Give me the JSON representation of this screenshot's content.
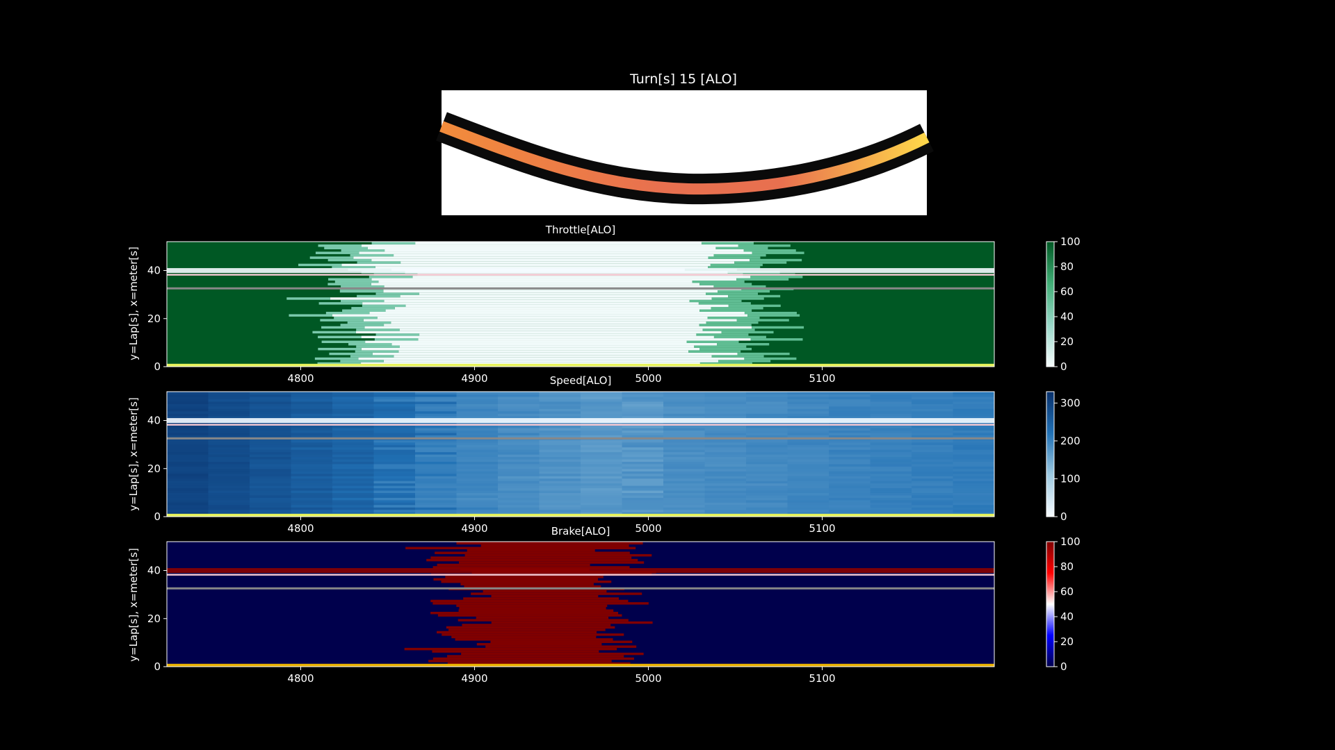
{
  "chart_data": [
    {
      "type": "track-map",
      "title": "Turn[s] 15 [ALO]",
      "colors": {
        "start": "#f28c3c",
        "mid": "#e8704f",
        "end": "#ffd84a",
        "border": "#0a0a0a"
      }
    },
    {
      "type": "heatmap",
      "title": "Throttle[ALO]",
      "ylabel": "y=Lap[s], x=meter[s]",
      "xlim": [
        4723,
        5199
      ],
      "ylim": [
        0,
        52
      ],
      "xticks": [
        4800,
        4900,
        5000,
        5100
      ],
      "yticks": [
        0,
        20,
        40
      ],
      "colorbar": {
        "ticks": [
          0,
          20,
          40,
          60,
          80,
          100
        ],
        "range": [
          0,
          100
        ],
        "colors": [
          "#f7fcfd",
          "#99d8c9",
          "#41ae76",
          "#005824"
        ]
      },
      "zone_start_x": 4850,
      "zone_end_x": 5040
    },
    {
      "type": "heatmap",
      "title": "Speed[ALO]",
      "ylabel": "y=Lap[s], x=meter[s]",
      "xlim": [
        4723,
        5199
      ],
      "ylim": [
        0,
        52
      ],
      "xticks": [
        4800,
        4900,
        5000,
        5100
      ],
      "yticks": [
        0,
        20,
        40
      ],
      "colorbar": {
        "ticks": [
          0,
          100,
          200,
          300
        ],
        "range": [
          0,
          330
        ],
        "colors": [
          "#f7fbff",
          "#9ecae1",
          "#2171b5",
          "#08306b"
        ]
      },
      "zone_start_x": 4870,
      "zone_end_x": 5000
    },
    {
      "type": "heatmap",
      "title": "Brake[ALO]",
      "ylabel": "y=Lap[s], x=meter[s]",
      "xlim": [
        4723,
        5199
      ],
      "ylim": [
        0,
        52
      ],
      "xticks": [
        4800,
        4900,
        5000,
        5100
      ],
      "yticks": [
        0,
        20,
        40
      ],
      "colorbar": {
        "ticks": [
          0,
          20,
          40,
          60,
          80,
          100
        ],
        "range": [
          0,
          100
        ],
        "colors": [
          "#00004c",
          "#0000ff",
          "#ffffff",
          "#ff0000",
          "#800000"
        ]
      },
      "zone_start_x": 4890,
      "zone_end_x": 4985
    }
  ]
}
